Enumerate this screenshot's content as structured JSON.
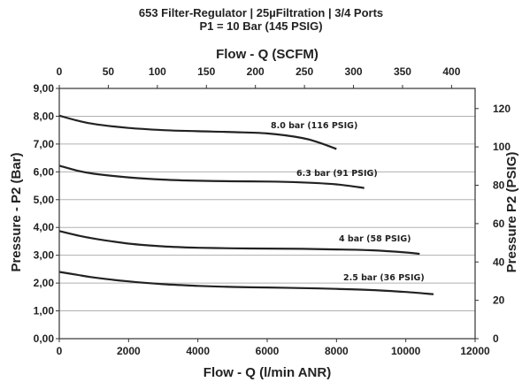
{
  "chart_data": {
    "type": "line",
    "title": "653 Filter-Regulator | 25µFiltration | 3/4 Ports",
    "subtitle": "P1 = 10 Bar (145 PSIG)",
    "xlabel": "Flow - Q (l/min ANR)",
    "ylabel": "Pressure - P2 (Bar)",
    "x2label": "Flow - Q (SCFM)",
    "y2label": "Pressure P2 (PSIG)",
    "xlim": [
      0,
      12000
    ],
    "ylim": [
      0,
      9
    ],
    "x2lim": [
      0,
      424
    ],
    "y2lim": [
      0,
      130.5
    ],
    "grid": true,
    "x_ticks": [
      "0",
      "2000",
      "4000",
      "6000",
      "8000",
      "10000",
      "12000"
    ],
    "x_tick_values": [
      0,
      2000,
      4000,
      6000,
      8000,
      10000,
      12000
    ],
    "y_ticks": [
      "0,00",
      "1,00",
      "2,00",
      "3,00",
      "4,00",
      "5,00",
      "6,00",
      "7,00",
      "8,00",
      "9,00"
    ],
    "y_tick_values": [
      0,
      1,
      2,
      3,
      4,
      5,
      6,
      7,
      8,
      9
    ],
    "x2_ticks": [
      "0",
      "50",
      "100",
      "150",
      "200",
      "250",
      "300",
      "350",
      "400"
    ],
    "x2_tick_values": [
      0,
      50,
      100,
      150,
      200,
      250,
      300,
      350,
      400
    ],
    "y2_ticks": [
      "0",
      "20",
      "40",
      "60",
      "80",
      "100",
      "120"
    ],
    "y2_tick_values": [
      0,
      20,
      40,
      60,
      80,
      100,
      120
    ],
    "series": [
      {
        "name": "8.0 bar (116 PSIG)",
        "x": [
          0,
          500,
          1000,
          2000,
          3000,
          4000,
          5000,
          6000,
          7000,
          7500,
          8000
        ],
        "y": [
          8.02,
          7.85,
          7.72,
          7.58,
          7.5,
          7.46,
          7.43,
          7.38,
          7.22,
          7.05,
          6.82
        ]
      },
      {
        "name": "6.3 bar (91 PSIG)",
        "x": [
          0,
          500,
          1000,
          2000,
          3000,
          4000,
          5000,
          6000,
          7000,
          8000,
          8800
        ],
        "y": [
          6.22,
          6.05,
          5.93,
          5.8,
          5.72,
          5.68,
          5.66,
          5.65,
          5.62,
          5.55,
          5.42
        ]
      },
      {
        "name": "4 bar (58 PSIG)",
        "x": [
          0,
          500,
          1000,
          2000,
          3000,
          4000,
          5000,
          6000,
          7000,
          8000,
          9000,
          10000,
          10400
        ],
        "y": [
          3.87,
          3.72,
          3.6,
          3.42,
          3.32,
          3.27,
          3.25,
          3.24,
          3.23,
          3.21,
          3.18,
          3.1,
          3.05
        ]
      },
      {
        "name": "2.5 bar (36 PSIG)",
        "x": [
          0,
          500,
          1000,
          2000,
          3000,
          4000,
          5000,
          6000,
          7000,
          8000,
          9000,
          10000,
          10800
        ],
        "y": [
          2.4,
          2.3,
          2.2,
          2.06,
          1.96,
          1.9,
          1.86,
          1.84,
          1.82,
          1.79,
          1.75,
          1.68,
          1.6
        ]
      }
    ]
  }
}
